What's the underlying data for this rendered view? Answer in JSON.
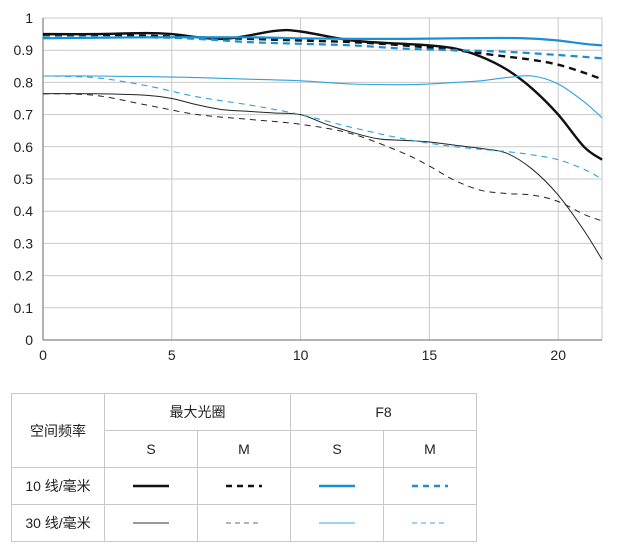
{
  "chart_data": {
    "type": "line",
    "x_ticks": [
      0,
      5,
      10,
      15,
      20
    ],
    "y_ticks": [
      0,
      0.1,
      0.2,
      0.3,
      0.4,
      0.5,
      0.6,
      0.7,
      0.8,
      0.9,
      1
    ],
    "y_tick_labels": [
      "0",
      "0.1",
      "0.2",
      "0.3",
      "0.4",
      "0.5",
      "0.6",
      "0.7",
      "0.8",
      "0.9",
      "1"
    ],
    "xlim": [
      0,
      21.7
    ],
    "ylim": [
      0,
      1
    ],
    "grid": true,
    "series": [
      {
        "name": "最大光圈 10 线/毫米 S",
        "color": "#111111",
        "width": 2.4,
        "dash": "",
        "x": [
          0,
          2,
          4,
          5,
          7,
          9,
          10,
          12,
          14,
          15,
          16,
          17,
          18,
          19,
          20,
          21,
          21.7
        ],
        "y": [
          0.95,
          0.95,
          0.953,
          0.95,
          0.935,
          0.96,
          0.958,
          0.93,
          0.92,
          0.915,
          0.905,
          0.88,
          0.84,
          0.78,
          0.7,
          0.6,
          0.56
        ]
      },
      {
        "name": "最大光圈 10 线/毫米 M",
        "color": "#111111",
        "width": 2.4,
        "dash": "7,5",
        "x": [
          0,
          2,
          4,
          6,
          8,
          10,
          12,
          14,
          16,
          18,
          19,
          20,
          21,
          21.7
        ],
        "y": [
          0.948,
          0.948,
          0.945,
          0.94,
          0.935,
          0.93,
          0.925,
          0.915,
          0.9,
          0.88,
          0.87,
          0.855,
          0.83,
          0.81
        ]
      },
      {
        "name": "F8 10 线/毫米 S",
        "color": "#1a8fd1",
        "width": 2.2,
        "dash": "",
        "x": [
          0,
          4,
          8,
          10,
          12,
          14,
          16,
          18,
          19,
          20,
          21,
          21.7
        ],
        "y": [
          0.937,
          0.94,
          0.94,
          0.937,
          0.935,
          0.935,
          0.937,
          0.938,
          0.936,
          0.93,
          0.92,
          0.915
        ]
      },
      {
        "name": "F8 10 线/毫米 M",
        "color": "#1a8fd1",
        "width": 2.2,
        "dash": "7,5",
        "x": [
          0,
          4,
          6,
          8,
          10,
          12,
          14,
          16,
          18,
          20,
          21.7
        ],
        "y": [
          0.94,
          0.94,
          0.935,
          0.925,
          0.92,
          0.915,
          0.905,
          0.9,
          0.895,
          0.885,
          0.875
        ]
      },
      {
        "name": "最大光圈 30 线/毫米 S",
        "color": "#222222",
        "width": 1,
        "dash": "",
        "x": [
          0,
          2,
          4,
          5,
          6,
          7,
          8,
          9,
          10,
          11,
          12,
          13,
          14,
          15,
          16,
          17,
          18,
          19,
          20,
          21,
          21.7
        ],
        "y": [
          0.765,
          0.765,
          0.76,
          0.75,
          0.73,
          0.715,
          0.71,
          0.705,
          0.7,
          0.67,
          0.645,
          0.625,
          0.62,
          0.615,
          0.605,
          0.595,
          0.58,
          0.53,
          0.45,
          0.34,
          0.25
        ]
      },
      {
        "name": "最大光圈 30 线/毫米 M",
        "color": "#222222",
        "width": 1,
        "dash": "6,5",
        "x": [
          0,
          2,
          4,
          6,
          8,
          10,
          12,
          14,
          15,
          16,
          17,
          18,
          19,
          20,
          21,
          21.7
        ],
        "y": [
          0.765,
          0.76,
          0.73,
          0.7,
          0.685,
          0.67,
          0.64,
          0.58,
          0.54,
          0.495,
          0.465,
          0.455,
          0.45,
          0.43,
          0.39,
          0.37
        ]
      },
      {
        "name": "F8 30 线/毫米 S",
        "color": "#2ea2de",
        "width": 1.1,
        "dash": "",
        "x": [
          0,
          2,
          4,
          6,
          8,
          10,
          12,
          14,
          15,
          16,
          17,
          18,
          19,
          20,
          21,
          21.7
        ],
        "y": [
          0.82,
          0.82,
          0.818,
          0.815,
          0.81,
          0.805,
          0.795,
          0.793,
          0.795,
          0.8,
          0.805,
          0.815,
          0.82,
          0.795,
          0.74,
          0.69
        ]
      },
      {
        "name": "F8 30 线/毫米 M",
        "color": "#2ea2de",
        "width": 1.1,
        "dash": "6,5",
        "x": [
          0,
          2,
          4,
          6,
          8,
          10,
          12,
          14,
          16,
          18,
          19,
          20,
          21,
          21.7
        ],
        "y": [
          0.82,
          0.815,
          0.79,
          0.755,
          0.73,
          0.7,
          0.66,
          0.625,
          0.6,
          0.585,
          0.575,
          0.56,
          0.53,
          0.5
        ]
      }
    ]
  },
  "legend": {
    "col_header": "空间频率",
    "group_max": "最大光圈",
    "group_f8": "F8",
    "s": "S",
    "m": "M",
    "row10": "10 线/毫米",
    "row30": "30 线/毫米",
    "colors": {
      "black": "#111111",
      "blue": "#1a8fd1",
      "thin_black": "#333333",
      "thin_blue": "#3aa8e2",
      "grey": "#888888"
    }
  }
}
